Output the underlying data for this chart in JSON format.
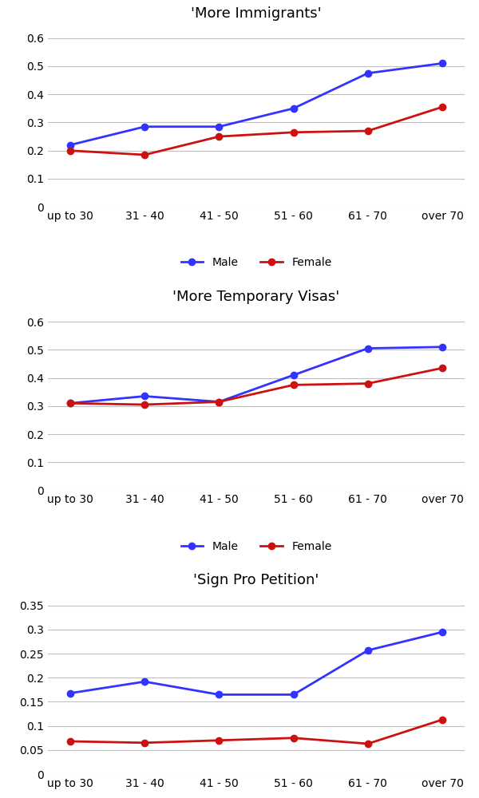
{
  "categories": [
    "up to 30",
    "31 - 40",
    "41 - 50",
    "51 - 60",
    "61 - 70",
    "over 70"
  ],
  "charts": [
    {
      "title": "'More Immigrants'",
      "male": [
        0.22,
        0.285,
        0.285,
        0.35,
        0.475,
        0.51
      ],
      "female": [
        0.2,
        0.185,
        0.25,
        0.265,
        0.27,
        0.355
      ],
      "ylim": [
        0,
        0.65
      ],
      "yticks": [
        0,
        0.1,
        0.2,
        0.3,
        0.4,
        0.5,
        0.6
      ]
    },
    {
      "title": "'More Temporary Visas'",
      "male": [
        0.31,
        0.335,
        0.315,
        0.41,
        0.505,
        0.51
      ],
      "female": [
        0.31,
        0.305,
        0.315,
        0.375,
        0.38,
        0.435
      ],
      "ylim": [
        0,
        0.65
      ],
      "yticks": [
        0,
        0.1,
        0.2,
        0.3,
        0.4,
        0.5,
        0.6
      ]
    },
    {
      "title": "'Sign Pro Petition'",
      "male": [
        0.168,
        0.192,
        0.165,
        0.165,
        0.257,
        0.295
      ],
      "female": [
        0.068,
        0.065,
        0.07,
        0.075,
        0.063,
        0.113
      ],
      "ylim": [
        0,
        0.38
      ],
      "yticks": [
        0,
        0.05,
        0.1,
        0.15,
        0.2,
        0.25,
        0.3,
        0.35
      ]
    }
  ],
  "male_color": "#3333FF",
  "female_color": "#CC1111",
  "line_width": 2.0,
  "marker_size": 6,
  "marker_style": "o",
  "legend_male": "Male",
  "legend_female": "Female",
  "title_fontsize": 13,
  "tick_fontsize": 10,
  "legend_fontsize": 10,
  "background_color": "#ffffff",
  "grid_color": "#c0c0c0"
}
